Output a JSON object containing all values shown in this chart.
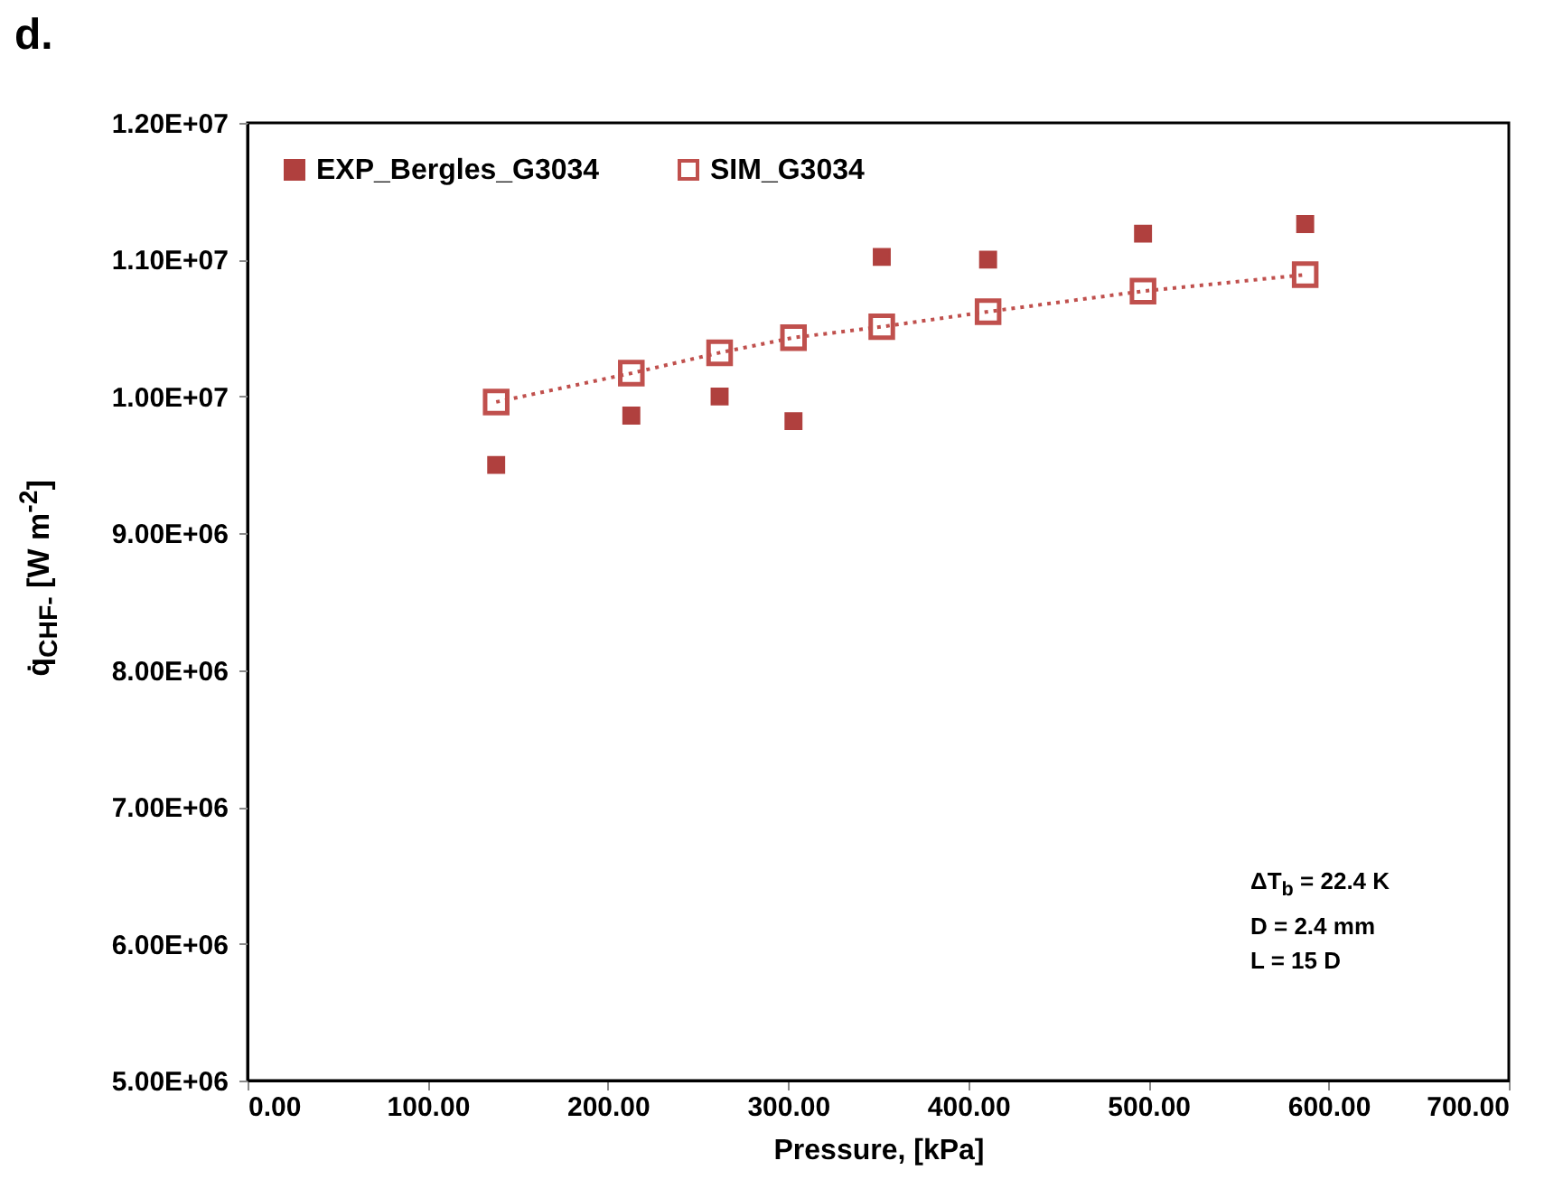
{
  "chart_data": {
    "type": "scatter",
    "title": "d.",
    "xlabel": "Pressure,  [kPa]",
    "ylabel": "q̇$_{CHF-}$ [W m$^{-2}$]",
    "xlim": [
      0,
      700
    ],
    "xticks": [
      {
        "value": 0,
        "label": "0.00"
      },
      {
        "value": 100,
        "label": "100.00"
      },
      {
        "value": 200,
        "label": "200.00"
      },
      {
        "value": 300,
        "label": "300.00"
      },
      {
        "value": 400,
        "label": "400.00"
      },
      {
        "value": 500,
        "label": "500.00"
      },
      {
        "value": 600,
        "label": "600.00"
      },
      {
        "value": 700,
        "label": "700.00"
      }
    ],
    "ylim": [
      5000000,
      12000000
    ],
    "yticks": [
      {
        "value": 5000000,
        "label": "5.00E+06"
      },
      {
        "value": 6000000,
        "label": "6.00E+06"
      },
      {
        "value": 7000000,
        "label": "7.00E+06"
      },
      {
        "value": 8000000,
        "label": "8.00E+06"
      },
      {
        "value": 9000000,
        "label": "9.00E+06"
      },
      {
        "value": 10000000,
        "label": "1.00E+07"
      },
      {
        "value": 11000000,
        "label": "1.10E+07"
      },
      {
        "value": 12000000,
        "label": "1.20E+07"
      }
    ],
    "x": [
      138,
      213,
      262,
      303,
      352,
      411,
      497,
      587
    ],
    "series": [
      {
        "name": "EXP_Bergles_G3034",
        "type": "scatter",
        "marker": "square",
        "color": "#b0403e",
        "values": [
          9500000,
          9860000,
          10000000,
          9820000,
          11020000,
          11000000,
          11190000,
          11260000
        ]
      },
      {
        "name": "SIM_G3034",
        "type": "line",
        "marker": "square",
        "line_style": "dotted",
        "color": "#c0504d",
        "values": [
          9960000,
          10170000,
          10320000,
          10430000,
          10510000,
          10620000,
          10770000,
          10890000
        ]
      }
    ],
    "legend": "top left",
    "grid": false,
    "annotations": [
      "ΔT$_{b}$ = 22.4 K",
      "D = 2.4 mm",
      "L = 15 D"
    ]
  }
}
